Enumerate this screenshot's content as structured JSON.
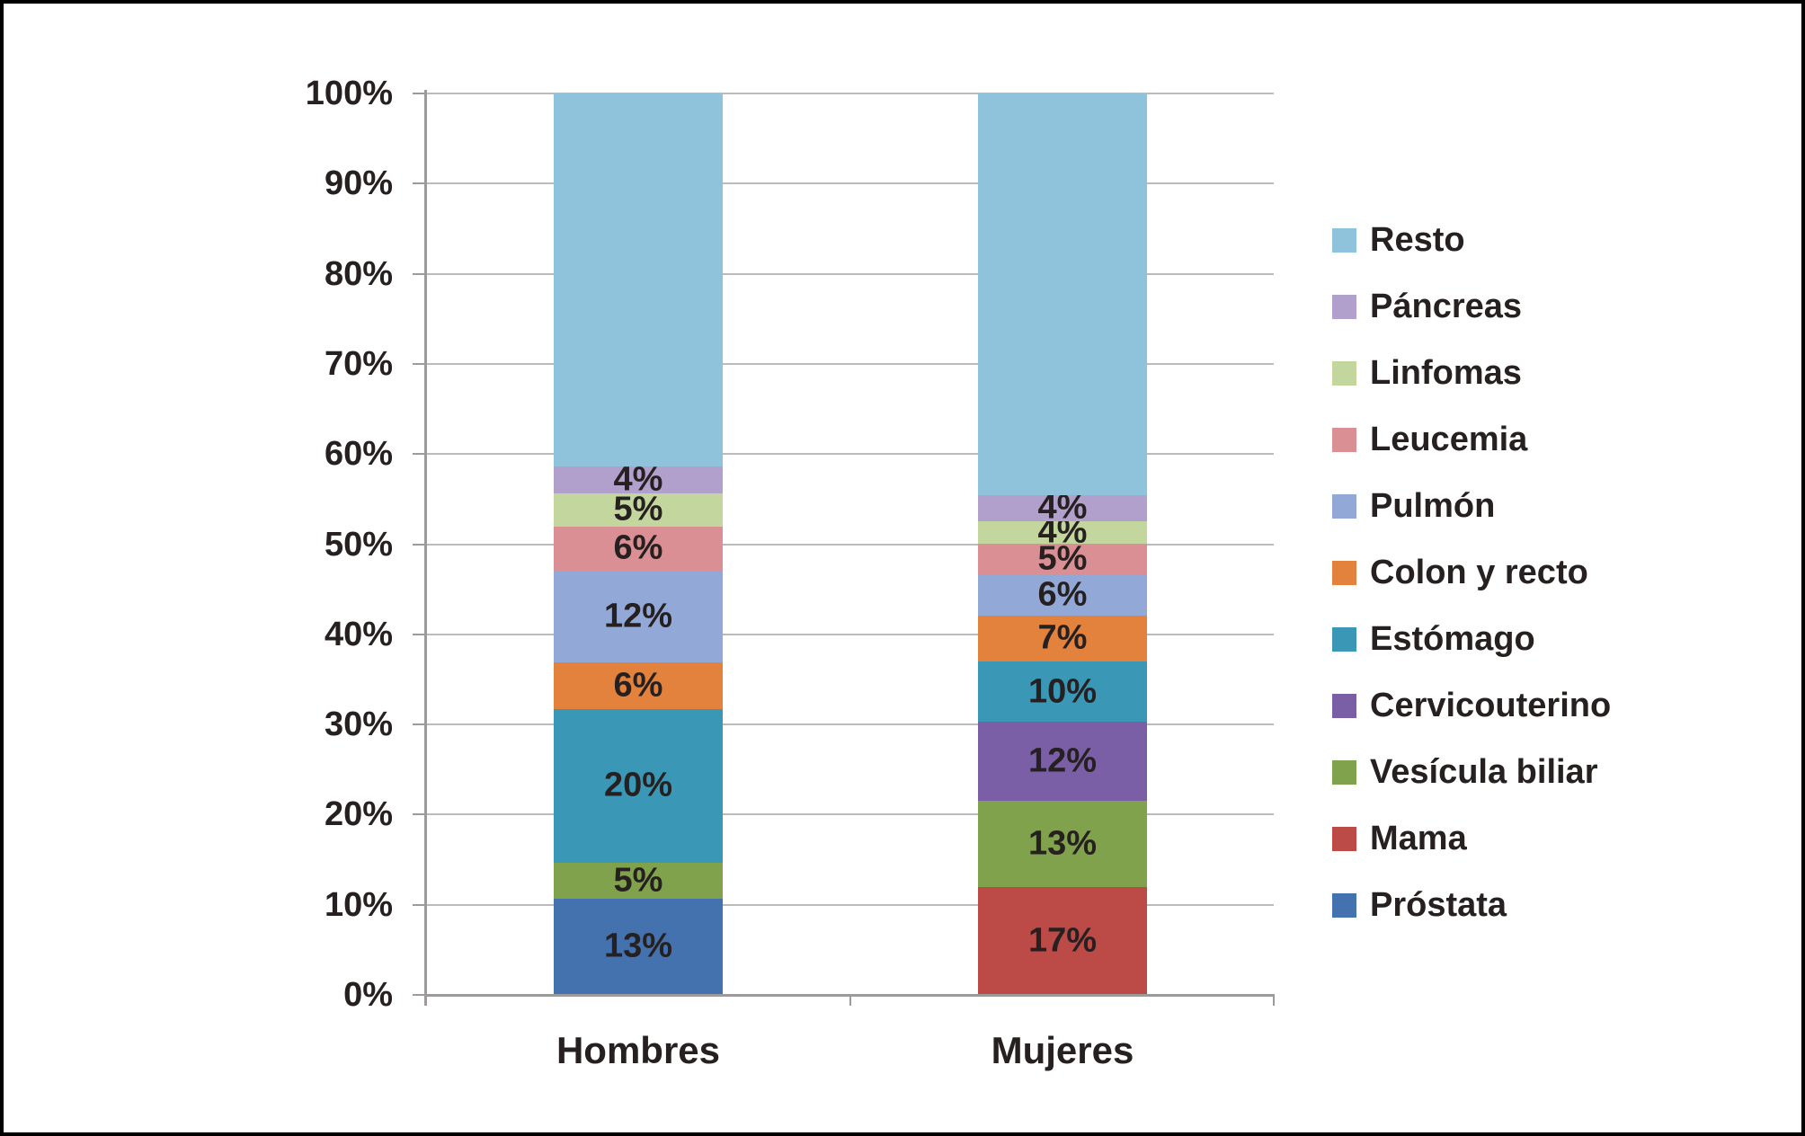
{
  "chart_data": {
    "type": "bar",
    "subtype": "stacked-percentage-column",
    "title": "",
    "categories": [
      "Hombres",
      "Mujeres"
    ],
    "y_axis": {
      "min": 0,
      "max": 100,
      "tick_step": 10,
      "tick_labels": [
        "0%",
        "10%",
        "20%",
        "30%",
        "40%",
        "50%",
        "60%",
        "70%",
        "80%",
        "90%",
        "100%"
      ]
    },
    "grid": true,
    "palette": {
      "Resto": "#8fc3dc",
      "Páncreas": "#b0a0cb",
      "Linfomas": "#c2d69e",
      "Leucemia": "#d98f94",
      "Pulmón": "#92a9d8",
      "Colon y recto": "#e2823d",
      "Estómago": "#3b97b6",
      "Cervicouterino": "#7b5fa6",
      "Vesícula biliar": "#80a24c",
      "Mama": "#bc4a47",
      "Próstata": "#4472af"
    },
    "legend": {
      "position": "right",
      "entries": [
        "Resto",
        "Páncreas",
        "Linfomas",
        "Leucemia",
        "Pulmón",
        "Colon y recto",
        "Estómago",
        "Cervicouterino",
        "Vesícula biliar",
        "Mama",
        "Próstata"
      ]
    },
    "series": [
      {
        "category": "Hombres",
        "segments_bottom_to_top": [
          {
            "name": "Próstata",
            "label": "13%",
            "value": 13,
            "drawn_pct": 10.7
          },
          {
            "name": "Vesícula biliar",
            "label": "5%",
            "value": 5,
            "drawn_pct": 4.0
          },
          {
            "name": "Estómago",
            "label": "20%",
            "value": 20,
            "drawn_pct": 17.0
          },
          {
            "name": "Colon y recto",
            "label": "6%",
            "value": 6,
            "drawn_pct": 5.2
          },
          {
            "name": "Pulmón",
            "label": "12%",
            "value": 12,
            "drawn_pct": 10.2
          },
          {
            "name": "Leucemia",
            "label": "6%",
            "value": 6,
            "drawn_pct": 4.9
          },
          {
            "name": "Linfomas",
            "label": "5%",
            "value": 5,
            "drawn_pct": 3.6
          },
          {
            "name": "Páncreas",
            "label": "4%",
            "value": 4,
            "drawn_pct": 3.0
          },
          {
            "name": "Resto",
            "label": "",
            "value": null,
            "drawn_pct": 41.4
          }
        ]
      },
      {
        "category": "Mujeres",
        "segments_bottom_to_top": [
          {
            "name": "Mama",
            "label": "17%",
            "value": 17,
            "drawn_pct": 12.0
          },
          {
            "name": "Vesícula biliar",
            "label": "13%",
            "value": 13,
            "drawn_pct": 9.5
          },
          {
            "name": "Cervicouterino",
            "label": "12%",
            "value": 12,
            "drawn_pct": 8.8
          },
          {
            "name": "Estómago",
            "label": "10%",
            "value": 10,
            "drawn_pct": 6.7
          },
          {
            "name": "Colon y recto",
            "label": "7%",
            "value": 7,
            "drawn_pct": 5.1
          },
          {
            "name": "Pulmón",
            "label": "6%",
            "value": 6,
            "drawn_pct": 4.5
          },
          {
            "name": "Leucemia",
            "label": "5%",
            "value": 5,
            "drawn_pct": 3.5
          },
          {
            "name": "Linfomas",
            "label": "4%",
            "value": 4,
            "drawn_pct": 2.5
          },
          {
            "name": "Páncreas",
            "label": "4%",
            "value": 4,
            "drawn_pct": 2.8
          },
          {
            "name": "Resto",
            "label": "",
            "value": null,
            "drawn_pct": 44.6
          }
        ]
      }
    ],
    "colors": {
      "gridline": "#bdbaba",
      "axis": "#9c9a9a",
      "text": "#262120",
      "background": "#ffffff",
      "frame": "#000000"
    }
  }
}
